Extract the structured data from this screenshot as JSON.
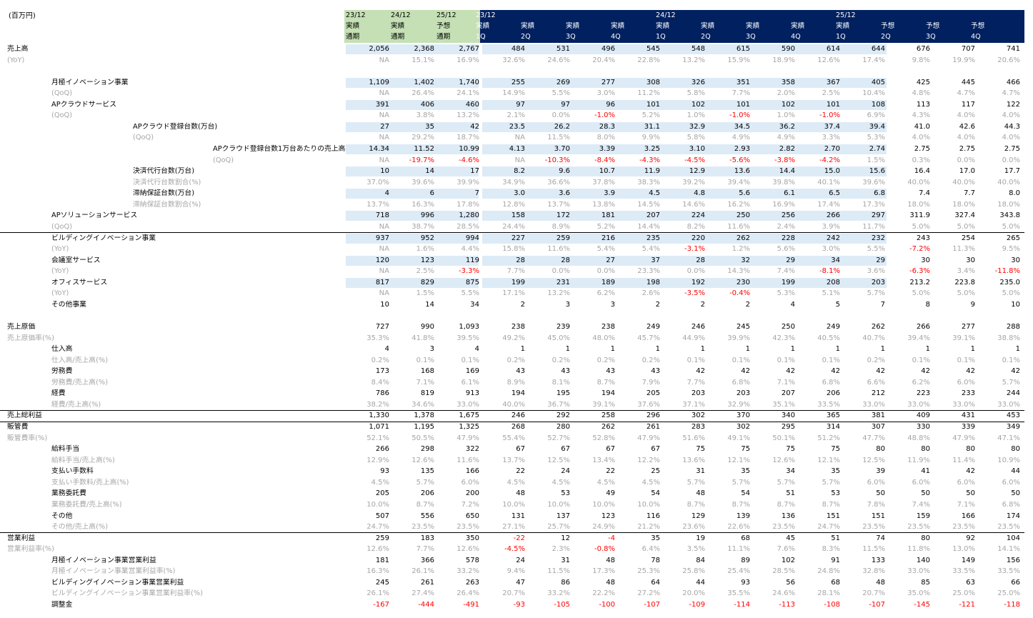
{
  "unit_label": "(百万円)",
  "header": {
    "annual": [
      {
        "y": "23/12",
        "a": "実績",
        "b": "通期"
      },
      {
        "y": "24/12",
        "a": "実績",
        "b": "通期"
      },
      {
        "y": "25/12",
        "a": "予想",
        "b": "通期"
      }
    ],
    "quarterly_years": [
      {
        "label": "23/12",
        "col": 0
      },
      {
        "label": "24/12",
        "col": 4
      },
      {
        "label": "25/12",
        "col": 8
      }
    ],
    "quarterly": [
      {
        "a": "実績",
        "b": "1Q"
      },
      {
        "a": "実績",
        "b": "2Q"
      },
      {
        "a": "実績",
        "b": "3Q"
      },
      {
        "a": "実績",
        "b": "4Q"
      },
      {
        "a": "実績",
        "b": "1Q"
      },
      {
        "a": "実績",
        "b": "2Q"
      },
      {
        "a": "実績",
        "b": "3Q"
      },
      {
        "a": "実績",
        "b": "4Q"
      },
      {
        "a": "実績",
        "b": "1Q"
      },
      {
        "a": "予想",
        "b": "2Q"
      },
      {
        "a": "予想",
        "b": "3Q"
      },
      {
        "a": "予想",
        "b": "4Q"
      }
    ]
  },
  "rows": [
    {
      "label": "売上高",
      "indent": 0,
      "type": "main",
      "shade": true,
      "values": [
        "2,056",
        "2,368",
        "2,767",
        "484",
        "531",
        "496",
        "545",
        "548",
        "615",
        "590",
        "614",
        "644",
        "676",
        "707",
        "741"
      ]
    },
    {
      "label": "(YoY)",
      "indent": 0,
      "type": "sub",
      "values": [
        "NA",
        "15.1%",
        "16.9%",
        "32.6%",
        "24.6%",
        "20.4%",
        "22.8%",
        "13.2%",
        "15.9%",
        "18.9%",
        "12.6%",
        "17.4%",
        "9.8%",
        "19.9%",
        "20.6%"
      ]
    },
    {
      "label": "",
      "type": "blank"
    },
    {
      "label": "月極イノベーション事業",
      "indent": 1,
      "type": "main",
      "shade": true,
      "values": [
        "1,109",
        "1,402",
        "1,740",
        "255",
        "269",
        "277",
        "308",
        "326",
        "351",
        "358",
        "367",
        "405",
        "425",
        "445",
        "466"
      ]
    },
    {
      "label": "(QoQ)",
      "indent": 1,
      "type": "sub",
      "values": [
        "NA",
        "26.4%",
        "24.1%",
        "14.9%",
        "5.5%",
        "3.0%",
        "11.2%",
        "5.8%",
        "7.7%",
        "2.0%",
        "2.5%",
        "10.4%",
        "4.8%",
        "4.7%",
        "4.7%"
      ]
    },
    {
      "label": "APクラウドサービス",
      "indent": 1,
      "type": "main",
      "shade": true,
      "values": [
        "391",
        "406",
        "460",
        "97",
        "97",
        "96",
        "101",
        "102",
        "101",
        "102",
        "101",
        "108",
        "113",
        "117",
        "122"
      ]
    },
    {
      "label": "(QoQ)",
      "indent": 1,
      "type": "sub",
      "values": [
        "NA",
        "3.8%",
        "13.2%",
        "2.1%",
        "0.0%",
        "-1.0%",
        "5.2%",
        "1.0%",
        "-1.0%",
        "1.0%",
        "-1.0%",
        "6.9%",
        "4.3%",
        "4.0%",
        "4.0%"
      ]
    },
    {
      "label": "APクラウド登録台数(万台)",
      "indent": 2,
      "type": "main",
      "shade": true,
      "values": [
        "27",
        "35",
        "42",
        "23.5",
        "26.2",
        "28.3",
        "31.1",
        "32.9",
        "34.5",
        "36.2",
        "37.4",
        "39.4",
        "41.0",
        "42.6",
        "44.3"
      ]
    },
    {
      "label": "(QoQ)",
      "indent": 2,
      "type": "sub",
      "values": [
        "NA",
        "29.2%",
        "18.7%",
        "NA",
        "11.5%",
        "8.0%",
        "9.9%",
        "5.8%",
        "4.9%",
        "4.9%",
        "3.3%",
        "5.3%",
        "4.0%",
        "4.0%",
        "4.0%"
      ]
    },
    {
      "label": "APクラウド登録台数1万台あたりの売上高",
      "indent": 3,
      "type": "main",
      "shade": true,
      "values": [
        "14.34",
        "11.52",
        "10.99",
        "4.13",
        "3.70",
        "3.39",
        "3.25",
        "3.10",
        "2.93",
        "2.82",
        "2.70",
        "2.74",
        "2.75",
        "2.75",
        "2.75"
      ]
    },
    {
      "label": "(QoQ)",
      "indent": 3,
      "type": "sub",
      "values": [
        "NA",
        "-19.7%",
        "-4.6%",
        "NA",
        "-10.3%",
        "-8.4%",
        "-4.3%",
        "-4.5%",
        "-5.6%",
        "-3.8%",
        "-4.2%",
        "1.5%",
        "0.3%",
        "0.0%",
        "0.0%"
      ]
    },
    {
      "label": "決済代行台数(万台)",
      "indent": 2,
      "type": "main",
      "shade": true,
      "values": [
        "10",
        "14",
        "17",
        "8.2",
        "9.6",
        "10.7",
        "11.9",
        "12.9",
        "13.6",
        "14.4",
        "15.0",
        "15.6",
        "16.4",
        "17.0",
        "17.7"
      ]
    },
    {
      "label": "決済代行台数割合(%)",
      "indent": 2,
      "type": "sub",
      "values": [
        "37.0%",
        "39.6%",
        "39.9%",
        "34.9%",
        "36.6%",
        "37.8%",
        "38.3%",
        "39.2%",
        "39.4%",
        "39.8%",
        "40.1%",
        "39.6%",
        "40.0%",
        "40.0%",
        "40.0%"
      ]
    },
    {
      "label": "滞納保証台数(万台)",
      "indent": 2,
      "type": "main",
      "shade": true,
      "values": [
        "4",
        "6",
        "7",
        "3.0",
        "3.6",
        "3.9",
        "4.5",
        "4.8",
        "5.6",
        "6.1",
        "6.5",
        "6.8",
        "7.4",
        "7.7",
        "8.0"
      ]
    },
    {
      "label": "滞納保証台数割合(%)",
      "indent": 2,
      "type": "sub",
      "values": [
        "13.7%",
        "16.3%",
        "17.8%",
        "12.8%",
        "13.7%",
        "13.8%",
        "14.5%",
        "14.6%",
        "16.2%",
        "16.9%",
        "17.4%",
        "17.3%",
        "18.0%",
        "18.0%",
        "18.0%"
      ]
    },
    {
      "label": "APソリューションサービス",
      "indent": 1,
      "type": "main",
      "shade": true,
      "values": [
        "718",
        "996",
        "1,280",
        "158",
        "172",
        "181",
        "207",
        "224",
        "250",
        "256",
        "266",
        "297",
        "311.9",
        "327.4",
        "343.8"
      ]
    },
    {
      "label": "(QoQ)",
      "indent": 1,
      "type": "sub",
      "values": [
        "NA",
        "38.7%",
        "28.5%",
        "24.4%",
        "8.9%",
        "5.2%",
        "14.4%",
        "8.2%",
        "11.6%",
        "2.4%",
        "3.9%",
        "11.7%",
        "5.0%",
        "5.0%",
        "5.0%"
      ]
    },
    {
      "label": "ビルディングイノベーション事業",
      "indent": 1,
      "type": "main",
      "shade": true,
      "values": [
        "937",
        "952",
        "994",
        "227",
        "259",
        "216",
        "235",
        "220",
        "262",
        "228",
        "242",
        "232",
        "243",
        "254",
        "265"
      ]
    },
    {
      "label": "(YoY)",
      "indent": 1,
      "type": "sub",
      "values": [
        "NA",
        "1.6%",
        "4.4%",
        "15.8%",
        "11.6%",
        "5.4%",
        "5.4%",
        "-3.1%",
        "1.2%",
        "5.6%",
        "3.0%",
        "5.5%",
        "-7.2%",
        "11.3%",
        "9.5%"
      ]
    },
    {
      "label": "会議室サービス",
      "indent": 1,
      "type": "main",
      "shade": true,
      "values": [
        "120",
        "123",
        "119",
        "28",
        "28",
        "27",
        "37",
        "28",
        "32",
        "29",
        "34",
        "29",
        "30",
        "30",
        "30"
      ]
    },
    {
      "label": "(YoY)",
      "indent": 1,
      "type": "sub",
      "values": [
        "NA",
        "2.5%",
        "-3.3%",
        "7.7%",
        "0.0%",
        "0.0%",
        "23.3%",
        "0.0%",
        "14.3%",
        "7.4%",
        "-8.1%",
        "3.6%",
        "-6.3%",
        "3.4%",
        "-11.8%"
      ]
    },
    {
      "label": "オフィスサービス",
      "indent": 1,
      "type": "main",
      "shade": true,
      "values": [
        "817",
        "829",
        "875",
        "199",
        "231",
        "189",
        "198",
        "192",
        "230",
        "199",
        "208",
        "203",
        "213.2",
        "223.8",
        "235.0"
      ]
    },
    {
      "label": "(YoY)",
      "indent": 1,
      "type": "sub",
      "values": [
        "NA",
        "1.5%",
        "5.5%",
        "17.1%",
        "13.2%",
        "6.2%",
        "2.6%",
        "-3.5%",
        "-0.4%",
        "5.3%",
        "5.1%",
        "5.7%",
        "5.0%",
        "5.0%",
        "5.0%"
      ]
    },
    {
      "label": "その他事業",
      "indent": 1,
      "type": "main",
      "shade": false,
      "values": [
        "10",
        "14",
        "34",
        "2",
        "3",
        "3",
        "2",
        "2",
        "2",
        "4",
        "5",
        "7",
        "8",
        "9",
        "10"
      ]
    },
    {
      "label": "",
      "type": "blank"
    },
    {
      "label": "売上原価",
      "indent": 0,
      "type": "main",
      "shade": false,
      "values": [
        "727",
        "990",
        "1,093",
        "238",
        "239",
        "238",
        "249",
        "246",
        "245",
        "250",
        "249",
        "262",
        "266",
        "277",
        "288"
      ]
    },
    {
      "label": "売上原価率(%)",
      "indent": 0,
      "type": "sub",
      "values": [
        "35.3%",
        "41.8%",
        "39.5%",
        "49.2%",
        "45.0%",
        "48.0%",
        "45.7%",
        "44.9%",
        "39.9%",
        "42.3%",
        "40.5%",
        "40.7%",
        "39.4%",
        "39.1%",
        "38.8%"
      ]
    },
    {
      "label": "仕入高",
      "indent": 1,
      "type": "main",
      "shade": false,
      "values": [
        "4",
        "3",
        "4",
        "1",
        "1",
        "1",
        "1",
        "1",
        "1",
        "1",
        "1",
        "1",
        "1",
        "1",
        "1"
      ]
    },
    {
      "label": "仕入高/売上高(%)",
      "indent": 1,
      "type": "sub",
      "values": [
        "0.2%",
        "0.1%",
        "0.1%",
        "0.2%",
        "0.2%",
        "0.2%",
        "0.2%",
        "0.1%",
        "0.1%",
        "0.1%",
        "0.1%",
        "0.2%",
        "0.1%",
        "0.1%",
        "0.1%"
      ]
    },
    {
      "label": "労務費",
      "indent": 1,
      "type": "main",
      "shade": false,
      "values": [
        "173",
        "168",
        "169",
        "43",
        "43",
        "43",
        "43",
        "42",
        "42",
        "42",
        "42",
        "42",
        "42",
        "42",
        "42"
      ]
    },
    {
      "label": "労務費/売上高(%)",
      "indent": 1,
      "type": "sub",
      "values": [
        "8.4%",
        "7.1%",
        "6.1%",
        "8.9%",
        "8.1%",
        "8.7%",
        "7.9%",
        "7.7%",
        "6.8%",
        "7.1%",
        "6.8%",
        "6.6%",
        "6.2%",
        "6.0%",
        "5.7%"
      ]
    },
    {
      "label": "経費",
      "indent": 1,
      "type": "main",
      "shade": false,
      "values": [
        "786",
        "819",
        "913",
        "194",
        "195",
        "194",
        "205",
        "203",
        "203",
        "207",
        "206",
        "212",
        "223",
        "233",
        "244"
      ]
    },
    {
      "label": "経費/売上高(%)",
      "indent": 1,
      "type": "sub",
      "values": [
        "38.2%",
        "34.6%",
        "33.0%",
        "40.0%",
        "36.7%",
        "39.1%",
        "37.6%",
        "37.1%",
        "32.9%",
        "35.1%",
        "33.5%",
        "33.0%",
        "33.0%",
        "33.0%",
        "33.0%"
      ]
    },
    {
      "label": "売上総利益",
      "indent": 0,
      "type": "main",
      "shade": false,
      "rule": "thick",
      "values": [
        "1,330",
        "1,378",
        "1,675",
        "246",
        "292",
        "258",
        "296",
        "302",
        "370",
        "340",
        "365",
        "381",
        "409",
        "431",
        "453"
      ]
    },
    {
      "label": "販管費",
      "indent": 0,
      "type": "main",
      "shade": false,
      "rule": "thin",
      "values": [
        "1,071",
        "1,195",
        "1,325",
        "268",
        "280",
        "262",
        "261",
        "283",
        "302",
        "295",
        "314",
        "307",
        "330",
        "339",
        "349"
      ]
    },
    {
      "label": "販管費率(%)",
      "indent": 0,
      "type": "sub",
      "values": [
        "52.1%",
        "50.5%",
        "47.9%",
        "55.4%",
        "52.7%",
        "52.8%",
        "47.9%",
        "51.6%",
        "49.1%",
        "50.1%",
        "51.2%",
        "47.7%",
        "48.8%",
        "47.9%",
        "47.1%"
      ]
    },
    {
      "label": "給料手当",
      "indent": 1,
      "type": "main",
      "shade": false,
      "values": [
        "266",
        "298",
        "322",
        "67",
        "67",
        "67",
        "67",
        "75",
        "75",
        "75",
        "75",
        "80",
        "80",
        "80",
        "80"
      ]
    },
    {
      "label": "給料手当/売上高(%)",
      "indent": 1,
      "type": "sub",
      "values": [
        "12.9%",
        "12.6%",
        "11.6%",
        "13.7%",
        "12.5%",
        "13.4%",
        "12.2%",
        "13.6%",
        "12.1%",
        "12.6%",
        "12.1%",
        "12.5%",
        "11.9%",
        "11.4%",
        "10.9%"
      ]
    },
    {
      "label": "支払い手数料",
      "indent": 1,
      "type": "main",
      "shade": false,
      "values": [
        "93",
        "135",
        "166",
        "22",
        "24",
        "22",
        "25",
        "31",
        "35",
        "34",
        "35",
        "39",
        "41",
        "42",
        "44"
      ]
    },
    {
      "label": "支払い手数料/売上高(%)",
      "indent": 1,
      "type": "sub",
      "values": [
        "4.5%",
        "5.7%",
        "6.0%",
        "4.5%",
        "4.5%",
        "4.5%",
        "4.5%",
        "5.7%",
        "5.7%",
        "5.7%",
        "5.7%",
        "6.0%",
        "6.0%",
        "6.0%",
        "6.0%"
      ]
    },
    {
      "label": "業務委託費",
      "indent": 1,
      "type": "main",
      "shade": false,
      "values": [
        "205",
        "206",
        "200",
        "48",
        "53",
        "49",
        "54",
        "48",
        "54",
        "51",
        "53",
        "50",
        "50",
        "50",
        "50"
      ]
    },
    {
      "label": "業務委託費/売上高(%)",
      "indent": 1,
      "type": "sub",
      "values": [
        "10.0%",
        "8.7%",
        "7.2%",
        "10.0%",
        "10.0%",
        "10.0%",
        "10.0%",
        "8.7%",
        "8.7%",
        "8.7%",
        "8.7%",
        "7.8%",
        "7.4%",
        "7.1%",
        "6.8%"
      ]
    },
    {
      "label": "その他",
      "indent": 1,
      "type": "main",
      "shade": false,
      "values": [
        "507",
        "556",
        "650",
        "131",
        "137",
        "123",
        "116",
        "129",
        "139",
        "136",
        "151",
        "151",
        "159",
        "166",
        "174"
      ]
    },
    {
      "label": "その他/売上高(%)",
      "indent": 1,
      "type": "sub",
      "values": [
        "24.7%",
        "23.5%",
        "23.5%",
        "27.1%",
        "25.7%",
        "24.9%",
        "21.2%",
        "23.6%",
        "22.6%",
        "23.5%",
        "24.7%",
        "23.5%",
        "23.5%",
        "23.5%",
        "23.5%"
      ]
    },
    {
      "label": "営業利益",
      "indent": 0,
      "type": "main",
      "shade": false,
      "rule": "thin",
      "values": [
        "259",
        "183",
        "350",
        "-22",
        "12",
        "-4",
        "35",
        "19",
        "68",
        "45",
        "51",
        "74",
        "80",
        "92",
        "104"
      ]
    },
    {
      "label": "営業利益率(%)",
      "indent": 0,
      "type": "sub",
      "values": [
        "12.6%",
        "7.7%",
        "12.6%",
        "-4.5%",
        "2.3%",
        "-0.8%",
        "6.4%",
        "3.5%",
        "11.1%",
        "7.6%",
        "8.3%",
        "11.5%",
        "11.8%",
        "13.0%",
        "14.1%"
      ]
    },
    {
      "label": "月極イノベーション事業営業利益",
      "indent": 1,
      "type": "main",
      "shade": false,
      "values": [
        "181",
        "366",
        "578",
        "24",
        "31",
        "48",
        "78",
        "84",
        "89",
        "102",
        "91",
        "133",
        "140",
        "149",
        "156"
      ]
    },
    {
      "label": "月極イノベーション事業営業利益率(%)",
      "indent": 1,
      "type": "sub",
      "values": [
        "16.3%",
        "26.1%",
        "33.2%",
        "9.4%",
        "11.5%",
        "17.3%",
        "25.3%",
        "25.8%",
        "25.4%",
        "28.5%",
        "24.8%",
        "32.8%",
        "33.0%",
        "33.5%",
        "33.5%"
      ]
    },
    {
      "label": "ビルディングイノベーション事業営業利益",
      "indent": 1,
      "type": "main",
      "shade": false,
      "values": [
        "245",
        "261",
        "263",
        "47",
        "86",
        "48",
        "64",
        "44",
        "93",
        "56",
        "68",
        "48",
        "85",
        "63",
        "66"
      ]
    },
    {
      "label": "ビルディングイノベーション事業営業利益率(%)",
      "indent": 1,
      "type": "sub",
      "values": [
        "26.1%",
        "27.4%",
        "26.4%",
        "20.7%",
        "33.2%",
        "22.2%",
        "27.2%",
        "20.0%",
        "35.5%",
        "24.6%",
        "28.1%",
        "20.7%",
        "35.0%",
        "25.0%",
        "25.0%"
      ]
    },
    {
      "label": "調整金",
      "indent": 1,
      "type": "main",
      "shade": false,
      "values": [
        "-167",
        "-444",
        "-491",
        "-93",
        "-105",
        "-100",
        "-107",
        "-109",
        "-114",
        "-113",
        "-108",
        "-107",
        "-145",
        "-121",
        "-118"
      ]
    }
  ]
}
